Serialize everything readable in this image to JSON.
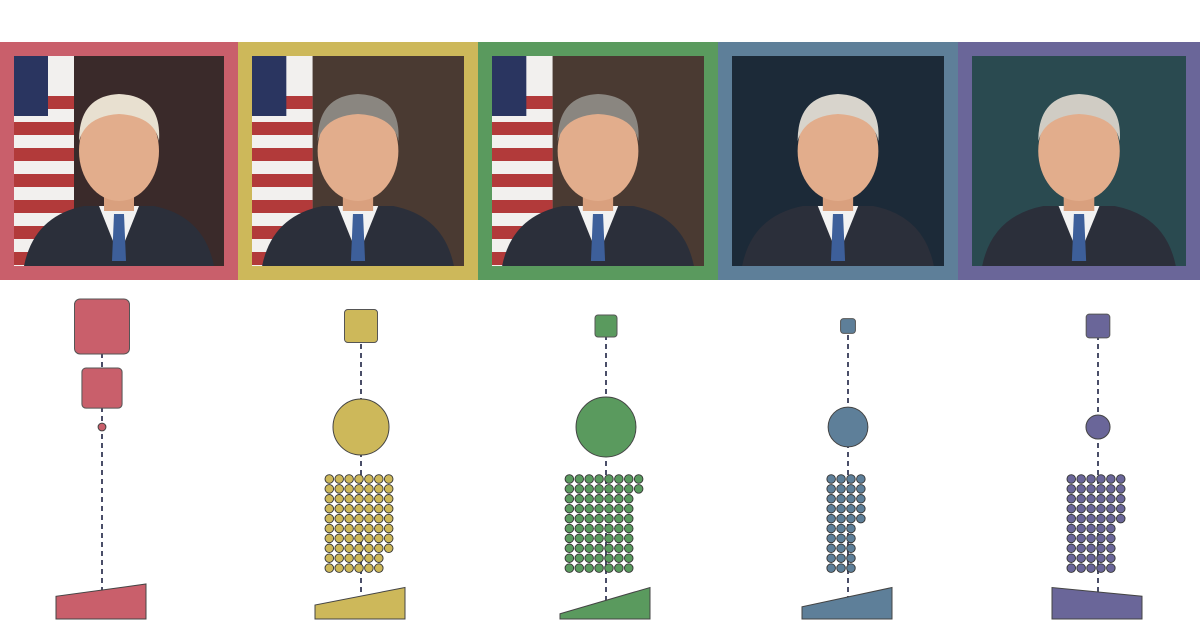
{
  "columns": [
    {
      "subject": "portrait-1",
      "color": "#c95f6b",
      "photo_bg": "#3a2a2a",
      "flag": true,
      "hair": "#e8e0d0",
      "top_squares": [
        1.0,
        0.73
      ],
      "circle": 0.14,
      "dot_rows": [],
      "wedge": {
        "start": 0.65,
        "end": 1.0
      }
    },
    {
      "subject": "portrait-2",
      "color": "#cdb85a",
      "photo_bg": "#4a3a32",
      "flag": true,
      "hair": "#8a8680",
      "top_squares": [
        0.6
      ],
      "circle": 1.0,
      "dot_rows": [
        7,
        7,
        7,
        7,
        7,
        7,
        7,
        7,
        6,
        6
      ],
      "wedge": {
        "start": 0.4,
        "end": 0.9
      }
    },
    {
      "subject": "portrait-3",
      "color": "#5a9a5e",
      "photo_bg": "#4a3a32",
      "flag": true,
      "hair": "#8a8680",
      "top_squares": [
        0.4
      ],
      "circle": 1.07,
      "dot_rows": [
        8,
        8,
        7,
        7,
        7,
        7,
        7,
        7,
        7,
        7
      ],
      "wedge": {
        "start": 0.15,
        "end": 0.9
      }
    },
    {
      "subject": "portrait-4",
      "color": "#5e7f99",
      "photo_bg": "#1c2a38",
      "flag": false,
      "hair": "#d8d4cc",
      "top_squares": [
        0.27
      ],
      "circle": 0.71,
      "dot_rows": [
        4,
        4,
        4,
        4,
        4,
        3,
        3,
        3,
        3,
        3
      ],
      "wedge": {
        "start": 0.35,
        "end": 0.9
      }
    },
    {
      "subject": "portrait-5",
      "color": "#6a6699",
      "photo_bg": "#2a4a50",
      "flag": false,
      "hair": "#d0ccc4",
      "top_squares": [
        0.43
      ],
      "circle": 0.43,
      "dot_rows": [
        6,
        6,
        6,
        6,
        6,
        5,
        5,
        5,
        5,
        5
      ],
      "wedge": {
        "start": 0.9,
        "end": 0.65
      }
    }
  ],
  "line_color": "#4a4e68"
}
